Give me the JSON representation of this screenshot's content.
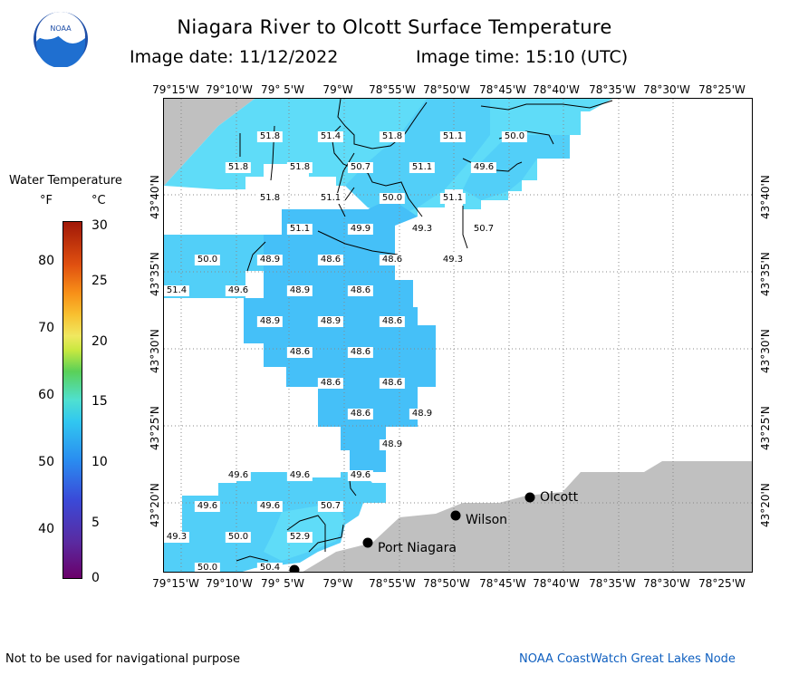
{
  "header": {
    "title": "Niagara River to Olcott Surface Temperature",
    "image_date": "Image date: 11/12/2022",
    "image_time": "Image time: 15:10 (UTC)"
  },
  "logo": {
    "text": "NOAA"
  },
  "legend": {
    "title": "Water Temperature",
    "unit_f": "°F",
    "unit_c": "°C",
    "fahrenheit_ticks": [
      "80",
      "70",
      "60",
      "50",
      "40"
    ],
    "celsius_ticks": [
      "30",
      "25",
      "20",
      "15",
      "10",
      "5",
      "0"
    ]
  },
  "axes": {
    "lon_labels": [
      "79°15'W",
      "79°10'W",
      "79° 5'W",
      "79°W",
      "78°55'W",
      "78°50'W",
      "78°45'W",
      "78°40'W",
      "78°35'W",
      "78°30'W",
      "78°25'W"
    ],
    "lat_labels": [
      "43°40'N",
      "43°35'N",
      "43°30'N",
      "43°25'N",
      "43°20'N"
    ]
  },
  "temperature_labels": [
    "51.8",
    "51.4",
    "51.8",
    "51.1",
    "50.0",
    "51.8",
    "51.8",
    "50.7",
    "51.1",
    "49.6",
    "51.8",
    "51.1",
    "50.0",
    "51.1",
    "51.1",
    "49.9",
    "49.3",
    "50.7",
    "50.0",
    "48.9",
    "48.6",
    "48.6",
    "49.3",
    "51.4",
    "49.6",
    "48.9",
    "48.6",
    "48.9",
    "48.9",
    "48.6",
    "48.6",
    "48.6",
    "48.6",
    "48.6",
    "48.6",
    "48.9",
    "48.9",
    "49.6",
    "49.6",
    "49.6",
    "49.6",
    "49.6",
    "50.7",
    "49.3",
    "50.0",
    "52.9",
    "50.0",
    "50.4"
  ],
  "places": {
    "olcott": "Olcott",
    "wilson": "Wilson",
    "port_niagara": "Port Niagara"
  },
  "footer": {
    "left": "Not to be used for navigational purpose",
    "right": "NOAA CoastWatch Great Lakes Node"
  },
  "colors": {
    "water_warm": "#5fdcf8",
    "water_cool": "#45c0f8",
    "water_mid": "#52cff8",
    "land": "#c0c0c0"
  }
}
